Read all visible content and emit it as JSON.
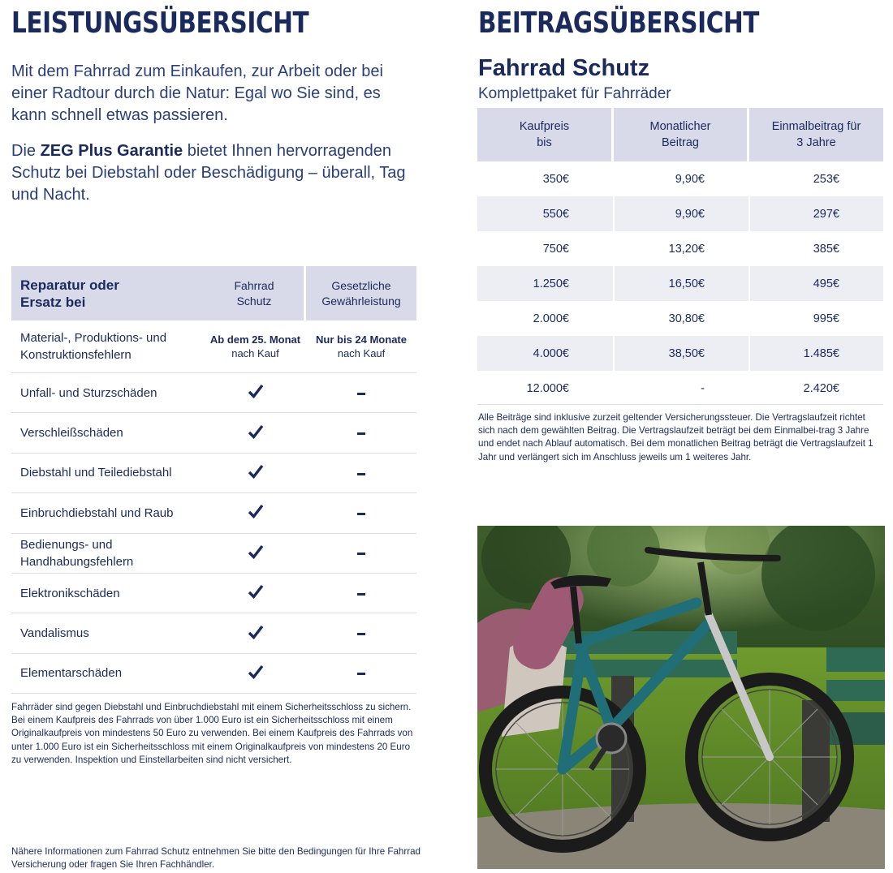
{
  "left": {
    "heading": "LEISTUNGSÜBERSICHT",
    "intro_1": "Mit dem Fahrrad zum Einkaufen, zur Arbeit oder bei einer Radtour durch die Natur: Egal wo Sie sind, es kann schnell etwas passieren.",
    "intro_2_prefix": "Die ",
    "intro_2_bold": "ZEG Plus Garantie",
    "intro_2_suffix": " bietet Ihnen hervorragenden Schutz bei Diebstahl oder Beschädigung – überall, Tag und Nacht.",
    "table": {
      "col1_line1": "Reparatur oder",
      "col1_line2": "Ersatz bei",
      "col2_line1": "Fahrrad",
      "col2_line2": "Schutz",
      "col3_line1": "Gesetzliche",
      "col3_line2": "Gewährleistung",
      "first_row": {
        "label_line1": "Material-, Produktions- und",
        "label_line2": "Konstruktionsfehlern",
        "col2_bold": "Ab dem 25. Monat",
        "col2_sub": "nach Kauf",
        "col3_bold": "Nur bis 24 Monate",
        "col3_sub": "nach Kauf"
      },
      "rows": [
        {
          "label": "Unfall- und Sturzschäden"
        },
        {
          "label": "Verschleißschäden"
        },
        {
          "label": "Diebstahl und Teilediebstahl"
        },
        {
          "label": "Einbruchdiebstahl und Raub"
        },
        {
          "label_line1": "Bedienungs- und",
          "label_line2": "Handhabungsfehlern"
        },
        {
          "label": "Elektronikschäden"
        },
        {
          "label": "Vandalismus"
        },
        {
          "label": "Elementarschäden"
        }
      ],
      "check_icon": "checkmark-icon",
      "dash_icon": "dash-icon"
    },
    "note": "Fahrräder sind gegen Diebstahl und Einbruchdiebstahl mit einem Sicherheitsschloss zu sichern. Bei einem Kaufpreis des Fahrrads von über 1.000 Euro ist ein Sicherheitsschloss mit einem Originalkaufpreis von mindestens 50 Euro zu verwenden. Bei einem Kaufpreis des Fahrrads von unter 1.000 Euro ist ein Sicherheitsschloss mit einem Originalkaufpreis von mindestens 20 Euro zu verwenden. Inspektion und Einstellarbeiten sind nicht versichert.",
    "bottom_note": "Nähere Informationen zum Fahrrad Schutz entnehmen Sie bitte den Bedingungen für Ihre Fahrrad Versicherung oder fragen Sie Ihren Fachhändler."
  },
  "right": {
    "heading": "BEITRAGSÜBERSICHT",
    "product_title": "Fahrrad Schutz",
    "product_subtitle": "Komplettpaket für Fahrräder",
    "table": {
      "h1_line1": "Kaufpreis",
      "h1_line2": "bis",
      "h2_line1": "Monatlicher",
      "h2_line2": "Beitrag",
      "h3_line1": "Einmalbeitrag für",
      "h3_line2": "3 Jahre",
      "rows": [
        {
          "price": "350€",
          "monthly": "9,90€",
          "once": "253€"
        },
        {
          "price": "550€",
          "monthly": "9,90€",
          "once": "297€"
        },
        {
          "price": "750€",
          "monthly": "13,20€",
          "once": "385€"
        },
        {
          "price": "1.250€",
          "monthly": "16,50€",
          "once": "495€"
        },
        {
          "price": "2.000€",
          "monthly": "30,80€",
          "once": "995€"
        },
        {
          "price": "4.000€",
          "monthly": "38,50€",
          "once": "1.485€"
        },
        {
          "price": "12.000€",
          "monthly": "-",
          "once": "2.420€"
        }
      ]
    },
    "note": "Alle Beiträge sind inklusive zurzeit geltender Versicherungssteuer. Die Vertragslaufzeit richtet sich nach dem gewählten Beitrag. Die Vertragslaufzeit beträgt bei dem Einmalbei-trag 3 Jahre und endet nach Ablauf automatisch. Bei dem monatlichen Beitrag beträgt die Vertragslaufzeit 1 Jahr und verlängert sich im Anschluss jeweils um 1 weiteres Jahr.",
    "photo_icon": "bicycle-photo",
    "photo_colors": {
      "frame": "#1f6e78",
      "grass": "#5f8a2a",
      "bench": "#2f6a55",
      "background": "#2c4a22"
    }
  },
  "colors": {
    "navy": "#1b2a5c",
    "header_bg": "#d8d9e9",
    "row_shade": "#eceef4"
  }
}
